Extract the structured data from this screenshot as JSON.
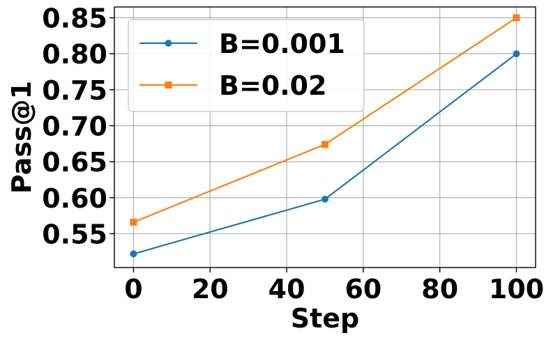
{
  "chart_data": {
    "type": "line",
    "title": "",
    "xlabel": "Step",
    "ylabel": "Pass@1",
    "x": [
      0,
      50,
      100
    ],
    "xlim": [
      -5,
      105
    ],
    "ylim": [
      0.503,
      0.865
    ],
    "xticks": [
      0,
      20,
      40,
      60,
      80,
      100
    ],
    "xtick_labels": [
      "0",
      "20",
      "40",
      "60",
      "80",
      "100"
    ],
    "yticks": [
      0.55,
      0.6,
      0.65,
      0.7,
      0.75,
      0.8,
      0.85
    ],
    "ytick_labels": [
      "0.55",
      "0.60",
      "0.65",
      "0.70",
      "0.75",
      "0.80",
      "0.85"
    ],
    "grid": true,
    "legend_position": "top-left",
    "series": [
      {
        "name": "B=0.001",
        "color": "#1f77b4",
        "marker": "circle",
        "values": [
          0.522,
          0.598,
          0.8
        ]
      },
      {
        "name": "B=0.02",
        "color": "#ff7f0e",
        "marker": "square",
        "values": [
          0.566,
          0.674,
          0.85
        ]
      }
    ]
  }
}
